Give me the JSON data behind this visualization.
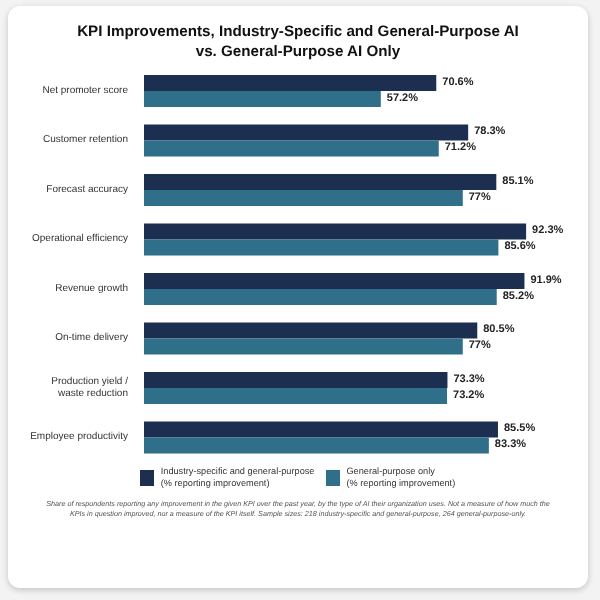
{
  "chart_data": {
    "type": "bar",
    "orientation": "horizontal",
    "title": "KPI Improvements, Industry-Specific and General-Purpose AI vs. General-Purpose AI Only",
    "categories": [
      "Net promoter score",
      "Customer retention",
      "Forecast accuracy",
      "Operational efficiency",
      "Revenue growth",
      "On-time delivery",
      "Production yield / waste reduction",
      "Employee productivity"
    ],
    "series": [
      {
        "name": "Industry-specific and general-purpose (% reporting improvement)",
        "color": "#1c2f50",
        "values": [
          70.6,
          78.3,
          85.1,
          92.3,
          91.9,
          80.5,
          73.3,
          85.5
        ],
        "value_labels": [
          "70.6%",
          "78.3%",
          "85.1%",
          "92.3%",
          "91.9%",
          "80.5%",
          "73.3%",
          "85.5%"
        ]
      },
      {
        "name": "General-purpose only (% reporting improvement)",
        "color": "#2f6f8a",
        "values": [
          57.2,
          71.2,
          77,
          85.6,
          85.2,
          77,
          73.2,
          83.3
        ],
        "value_labels": [
          "57.2%",
          "71.2%",
          "77%",
          "85.6%",
          "85.2%",
          "77%",
          "73.2%",
          "83.3%"
        ]
      }
    ],
    "tick_labels": "y",
    "legend": "bottom",
    "annotations": [
      "Share of respondents reporting any improvement in the given KPI over the past year, by the type of AI their organization uses. Not a measure of how much the KPIs in question improved, nor a measure of the KPI itself. Sample sizes: 218 industry-specific and general-purpose, 264 general-purpose-only."
    ]
  }
}
